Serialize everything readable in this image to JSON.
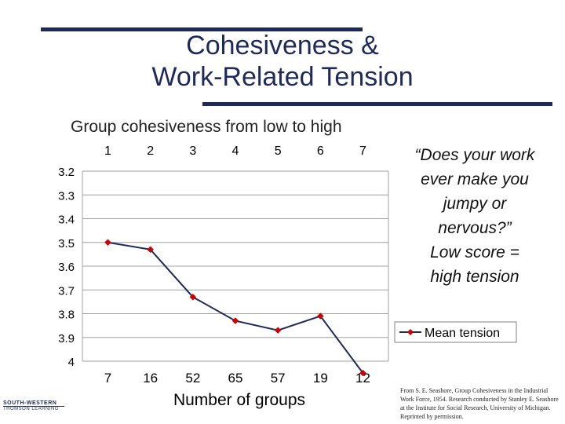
{
  "slide": {
    "title_line1": "Cohesiveness &",
    "title_line2": "Work-Related Tension",
    "subtitle": "Group cohesiveness from low to high",
    "quote_lines": [
      "“Does your work",
      "ever make you",
      "jumpy or",
      "nervous?”",
      "Low score =",
      "high tension"
    ],
    "credit": "From S. E. Seashore, Group Cohesiveness in the Industrial Work Force, 1954. Research conducted by Stanley E. Seashore at the Institute for Social Research, University of Michigan. Reprinted by permission.",
    "logo_line1": "SOUTH-WESTERN",
    "logo_line2": "THOMSON LEARNING"
  },
  "chart_data": {
    "type": "line",
    "title": "",
    "xlabel": "Number of  groups",
    "ylabel": "",
    "categories": [
      "1",
      "2",
      "3",
      "4",
      "5",
      "6",
      "7"
    ],
    "group_counts": [
      "7",
      "16",
      "52",
      "65",
      "57",
      "19",
      "12"
    ],
    "y_ticks": [
      "3.2",
      "3.3",
      "3.4",
      "3.5",
      "3.6",
      "3.7",
      "3.8",
      "3.9",
      "4"
    ],
    "ylim": [
      3.2,
      4.0
    ],
    "y_inverted": true,
    "series": [
      {
        "name": "Mean tension",
        "values": [
          3.5,
          3.53,
          3.73,
          3.83,
          3.87,
          3.81,
          4.05
        ],
        "color": "#cc0000"
      }
    ],
    "grid": true,
    "legend_position": "right",
    "line_color": "#1f2a5c"
  }
}
